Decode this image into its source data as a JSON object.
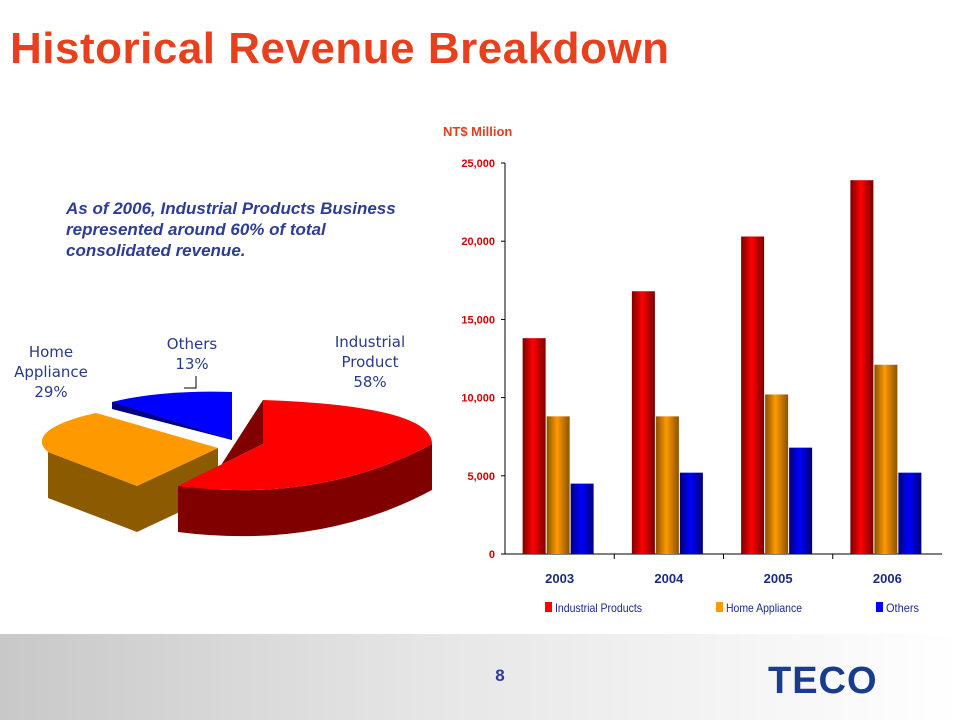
{
  "slide": {
    "title": "Historical Revenue Breakdown",
    "note": "As of 2006, Industrial Products Business represented around 60% of total consolidated revenue.",
    "page_number": "8",
    "logo_text": "TECO"
  },
  "colors": {
    "title": "#e8401c",
    "industrial": "#ff0000",
    "home_appliance": "#ff9900",
    "others": "#0000ff"
  },
  "chart_data": [
    {
      "type": "pie",
      "title": "",
      "slices": [
        {
          "label_lines": [
            "Industrial",
            "Product"
          ],
          "label": "Industrial Product",
          "percent_label": "58%",
          "value": 58
        },
        {
          "label_lines": [
            "Home",
            "Appliance"
          ],
          "label": "Home Appliance",
          "percent_label": "29%",
          "value": 29
        },
        {
          "label_lines": [
            "Others"
          ],
          "label": "Others",
          "percent_label": "13%",
          "value": 13
        }
      ]
    },
    {
      "type": "bar",
      "title": "",
      "ylabel": "NT$ Million",
      "categories": [
        "2003",
        "2004",
        "2005",
        "2006"
      ],
      "ylim": [
        0,
        25000
      ],
      "yticks": [
        0,
        5000,
        10000,
        15000,
        20000,
        25000
      ],
      "ytick_labels": [
        "0",
        "5,000",
        "10,000",
        "15,000",
        "20,000",
        "25,000"
      ],
      "legend_position": "bottom",
      "series": [
        {
          "name": "Industrial Products",
          "values": [
            13800,
            16800,
            20300,
            23900
          ]
        },
        {
          "name": "Home Appliance",
          "values": [
            8800,
            8800,
            10200,
            12100
          ]
        },
        {
          "name": "Others",
          "values": [
            4500,
            5200,
            6800,
            5200
          ]
        }
      ]
    }
  ]
}
